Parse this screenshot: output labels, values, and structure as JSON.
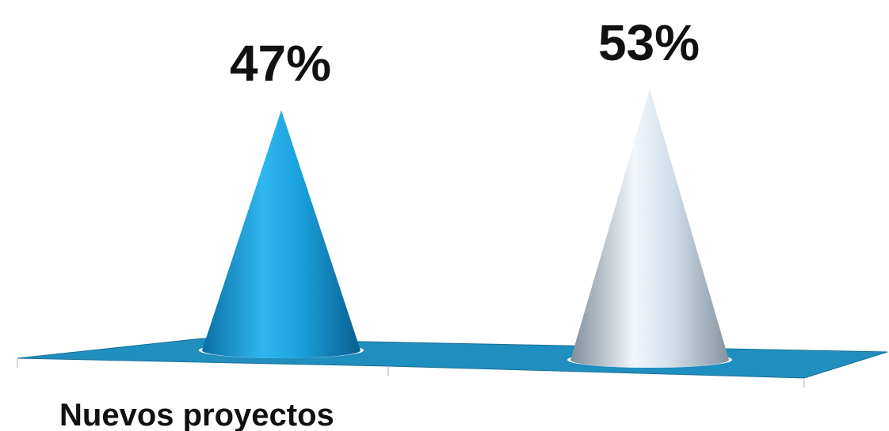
{
  "chart_data": {
    "type": "bar",
    "style": "3d-cone",
    "categories": [
      "Nuevos proyectos",
      ""
    ],
    "values": [
      47,
      53
    ],
    "value_suffix": "%",
    "data_labels": [
      "47%",
      "53%"
    ],
    "title": "",
    "xlabel": "",
    "ylabel": "",
    "ylim": [
      0,
      60
    ],
    "grid": false,
    "legend": "none",
    "colors": {
      "series": [
        "#1aa0dc",
        "#c7d6e4"
      ],
      "floor": "#1f8fbf",
      "floor_edge": "#176f95",
      "axis": "#c8c8c8"
    }
  }
}
